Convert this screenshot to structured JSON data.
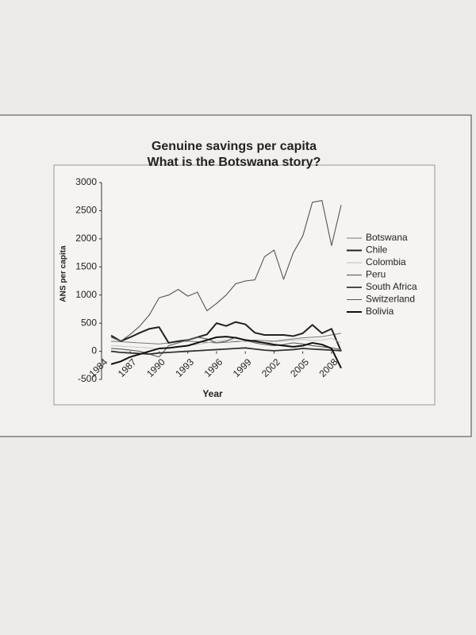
{
  "chart_data": {
    "type": "line",
    "title": "Genuine savings per capita",
    "subtitle": "What is the Botswana story?",
    "x_label": "Year",
    "y_label": "ANS per capita",
    "x": [
      1985,
      1986,
      1987,
      1988,
      1989,
      1990,
      1991,
      1992,
      1993,
      1994,
      1995,
      1996,
      1997,
      1998,
      1999,
      2000,
      2001,
      2002,
      2003,
      2004,
      2005,
      2006,
      2007,
      2008,
      2009
    ],
    "xlim": [
      1984,
      2009
    ],
    "xticks": [
      1984,
      1987,
      1990,
      1993,
      1996,
      1999,
      2002,
      2005,
      2008
    ],
    "ylim": [
      -500,
      3000
    ],
    "yticks": [
      -500,
      0,
      500,
      1000,
      1500,
      2000,
      2500,
      3000
    ],
    "legend": "right",
    "series": [
      {
        "name": "Botswana",
        "color": "#777777",
        "values": [
          180,
          170,
          160,
          150,
          140,
          130,
          150,
          170,
          180,
          170,
          160,
          150,
          160,
          170,
          180,
          200,
          190,
          180,
          200,
          220,
          240,
          250,
          260,
          290,
          320
        ]
      },
      {
        "name": "Chile",
        "color": "#222222",
        "values": [
          280,
          180,
          250,
          330,
          400,
          430,
          150,
          180,
          200,
          250,
          300,
          500,
          450,
          520,
          480,
          330,
          290,
          290,
          290,
          270,
          320,
          470,
          320,
          400,
          0
        ]
      },
      {
        "name": "Colombia",
        "color": "#bbbbbb",
        "values": [
          100,
          90,
          80,
          70,
          60,
          40,
          60,
          80,
          100,
          120,
          150,
          180,
          200,
          190,
          170,
          160,
          150,
          170,
          180,
          200,
          210,
          190,
          200,
          230,
          150
        ]
      },
      {
        "name": "Peru",
        "color": "#666666",
        "values": [
          50,
          40,
          20,
          0,
          -50,
          -100,
          100,
          150,
          200,
          250,
          220,
          150,
          180,
          250,
          200,
          150,
          120,
          100,
          120,
          150,
          130,
          100,
          80,
          60,
          30
        ]
      },
      {
        "name": "South Africa",
        "color": "#333333",
        "values": [
          0,
          -20,
          -30,
          -40,
          -50,
          -30,
          -20,
          -10,
          0,
          10,
          20,
          30,
          40,
          50,
          60,
          40,
          20,
          10,
          20,
          30,
          50,
          40,
          30,
          20,
          10
        ]
      },
      {
        "name": "Switzerland",
        "color": "#555555",
        "values": [
          250,
          180,
          300,
          450,
          650,
          950,
          1000,
          1100,
          980,
          1050,
          720,
          850,
          1000,
          1200,
          1250,
          1270,
          1680,
          1800,
          1280,
          1750,
          2050,
          2650,
          2680,
          1880,
          2600
        ]
      },
      {
        "name": "Bolivia",
        "color": "#111111",
        "values": [
          -230,
          -180,
          -100,
          -50,
          0,
          50,
          60,
          80,
          100,
          150,
          200,
          250,
          260,
          240,
          200,
          180,
          150,
          120,
          100,
          80,
          100,
          150,
          120,
          50,
          -300
        ]
      }
    ]
  }
}
